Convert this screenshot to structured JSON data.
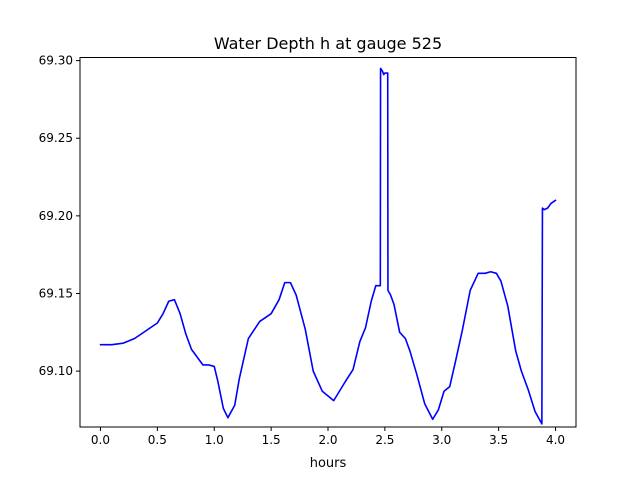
{
  "chart_data": {
    "type": "line",
    "title": "Water Depth h at gauge 525",
    "xlabel": "hours",
    "ylabel": "",
    "xlim": [
      -0.18,
      4.18
    ],
    "ylim": [
      69.064,
      69.302
    ],
    "xticks": [
      0.0,
      0.5,
      1.0,
      1.5,
      2.0,
      2.5,
      3.0,
      3.5,
      4.0
    ],
    "xtick_labels": [
      "0.0",
      "0.5",
      "1.0",
      "1.5",
      "2.0",
      "2.5",
      "3.0",
      "3.5",
      "4.0"
    ],
    "yticks": [
      69.1,
      69.15,
      69.2,
      69.25,
      69.3
    ],
    "ytick_labels": [
      "69.10",
      "69.15",
      "69.20",
      "69.25",
      "69.30"
    ],
    "grid": false,
    "legend": "none",
    "line_color": "#0000ff",
    "series": [
      {
        "x": [
          0.0,
          0.1,
          0.2,
          0.3,
          0.4,
          0.5,
          0.55,
          0.6,
          0.65,
          0.7,
          0.75,
          0.8,
          0.9,
          0.95,
          1.0,
          1.03,
          1.08,
          1.12,
          1.18,
          1.22,
          1.3,
          1.4,
          1.5,
          1.57,
          1.62,
          1.67,
          1.72,
          1.8,
          1.87,
          1.95,
          2.05,
          2.15,
          2.22,
          2.28,
          2.33,
          2.38,
          2.42,
          2.45,
          2.46,
          2.462,
          2.48,
          2.49,
          2.5,
          2.52,
          2.525,
          2.527,
          2.55,
          2.58,
          2.63,
          2.68,
          2.72,
          2.78,
          2.85,
          2.92,
          2.97,
          3.02,
          3.07,
          3.12,
          3.18,
          3.25,
          3.32,
          3.38,
          3.43,
          3.48,
          3.52,
          3.58,
          3.65,
          3.7,
          3.76,
          3.82,
          3.88,
          3.885,
          3.9,
          3.93,
          3.96,
          4.0
        ],
        "y": [
          69.117,
          69.117,
          69.118,
          69.121,
          69.126,
          69.131,
          69.137,
          69.145,
          69.146,
          69.137,
          69.124,
          69.114,
          69.104,
          69.104,
          69.103,
          69.094,
          69.076,
          69.07,
          69.078,
          69.095,
          69.121,
          69.132,
          69.137,
          69.146,
          69.157,
          69.157,
          69.149,
          69.127,
          69.1,
          69.087,
          69.081,
          69.093,
          69.101,
          69.119,
          69.128,
          69.145,
          69.155,
          69.155,
          69.155,
          69.295,
          69.293,
          69.291,
          69.292,
          69.292,
          69.292,
          69.152,
          69.149,
          69.143,
          69.125,
          69.121,
          69.113,
          69.098,
          69.079,
          69.069,
          69.075,
          69.087,
          69.09,
          69.106,
          69.126,
          69.152,
          69.163,
          69.163,
          69.164,
          69.163,
          69.158,
          69.142,
          69.113,
          69.1,
          69.088,
          69.074,
          69.066,
          69.205,
          69.204,
          69.205,
          69.208,
          69.21
        ]
      }
    ]
  }
}
